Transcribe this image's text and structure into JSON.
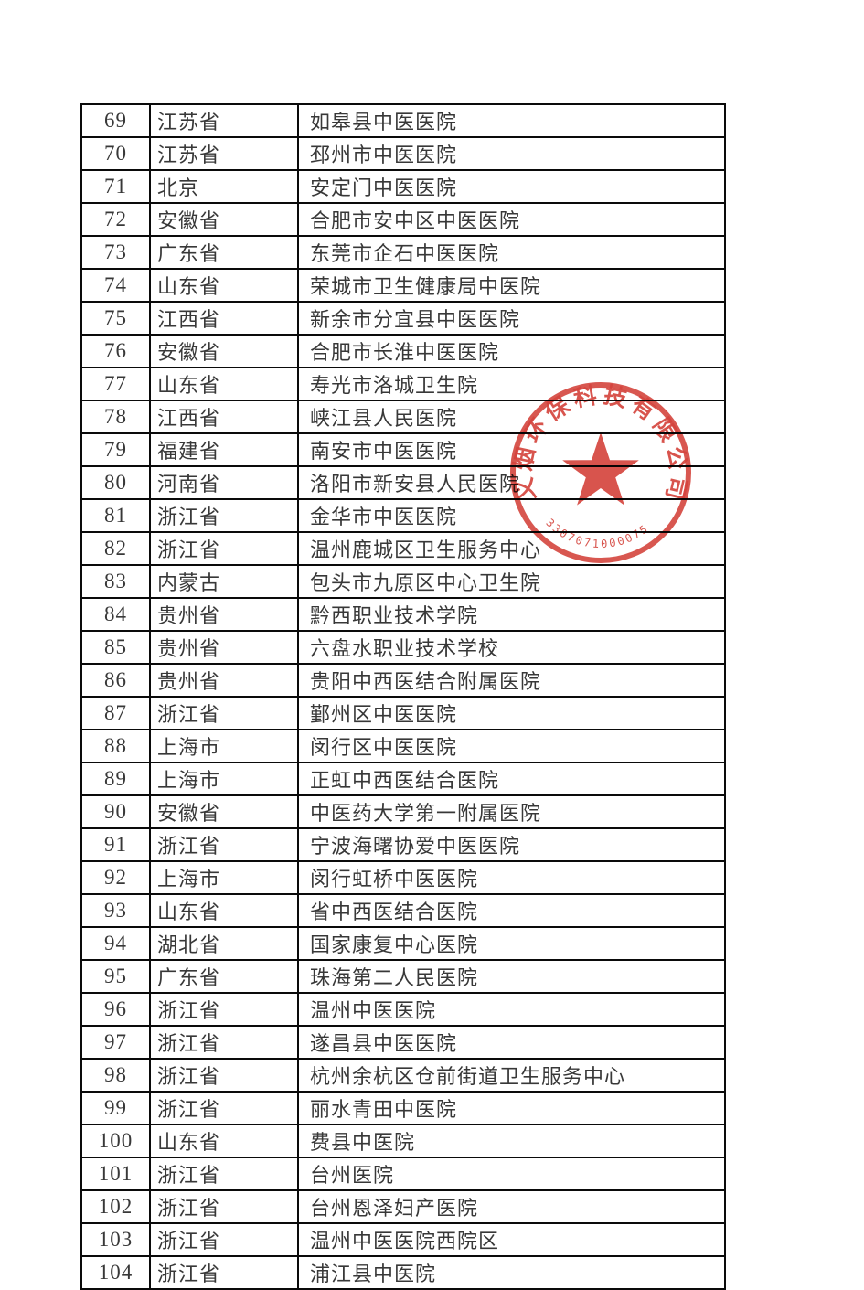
{
  "page": {
    "background_color": "#ffffff",
    "description": "scanned list page, table rows 69-104, no header row"
  },
  "table": {
    "border_color": "#0a0a0a",
    "text_color": "#383838",
    "rows": [
      {
        "no": "69",
        "province": "江苏省",
        "name": "如皋县中医医院"
      },
      {
        "no": "70",
        "province": "江苏省",
        "name": "邳州市中医医院"
      },
      {
        "no": "71",
        "province": "北京",
        "name": "安定门中医医院"
      },
      {
        "no": "72",
        "province": "安徽省",
        "name": "合肥市安中区中医医院"
      },
      {
        "no": "73",
        "province": "广东省",
        "name": "东莞市企石中医医院"
      },
      {
        "no": "74",
        "province": "山东省",
        "name": "荣城市卫生健康局中医院"
      },
      {
        "no": "75",
        "province": "江西省",
        "name": "新余市分宜县中医医院"
      },
      {
        "no": "76",
        "province": "安徽省",
        "name": "合肥市长淮中医医院"
      },
      {
        "no": "77",
        "province": "山东省",
        "name": "寿光市洛城卫生院"
      },
      {
        "no": "78",
        "province": "江西省",
        "name": "峡江县人民医院"
      },
      {
        "no": "79",
        "province": "福建省",
        "name": "南安市中医医院"
      },
      {
        "no": "80",
        "province": "河南省",
        "name": "洛阳市新安县人民医院"
      },
      {
        "no": "81",
        "province": "浙江省",
        "name": "金华市中医医院"
      },
      {
        "no": "82",
        "province": "浙江省",
        "name": "温州鹿城区卫生服务中心"
      },
      {
        "no": "83",
        "province": "内蒙古",
        "name": "包头市九原区中心卫生院"
      },
      {
        "no": "84",
        "province": "贵州省",
        "name": "黔西职业技术学院"
      },
      {
        "no": "85",
        "province": "贵州省",
        "name": "六盘水职业技术学校"
      },
      {
        "no": "86",
        "province": "贵州省",
        "name": "贵阳中西医结合附属医院"
      },
      {
        "no": "87",
        "province": "浙江省",
        "name": "鄞州区中医医院"
      },
      {
        "no": "88",
        "province": "上海市",
        "name": "闵行区中医医院"
      },
      {
        "no": "89",
        "province": "上海市",
        "name": "正虹中西医结合医院"
      },
      {
        "no": "90",
        "province": "安徽省",
        "name": "中医药大学第一附属医院"
      },
      {
        "no": "91",
        "province": "浙江省",
        "name": "宁波海曙协爱中医医院"
      },
      {
        "no": "92",
        "province": "上海市",
        "name": "闵行虹桥中医医院"
      },
      {
        "no": "93",
        "province": "山东省",
        "name": "省中西医结合医院"
      },
      {
        "no": "94",
        "province": "湖北省",
        "name": "国家康复中心医院"
      },
      {
        "no": "95",
        "province": "广东省",
        "name": "珠海第二人民医院"
      },
      {
        "no": "96",
        "province": "浙江省",
        "name": "温州中医医院"
      },
      {
        "no": "97",
        "province": "浙江省",
        "name": "遂昌县中医医院"
      },
      {
        "no": "98",
        "province": "浙江省",
        "name": "杭州余杭区仓前街道卫生服务中心"
      },
      {
        "no": "99",
        "province": "浙江省",
        "name": "丽水青田中医院"
      },
      {
        "no": "100",
        "province": "山东省",
        "name": "费县中医院"
      },
      {
        "no": "101",
        "province": "浙江省",
        "name": "台州医院"
      },
      {
        "no": "102",
        "province": "浙江省",
        "name": "台州恩泽妇产医院"
      },
      {
        "no": "103",
        "province": "浙江省",
        "name": "温州中医医院西院区"
      },
      {
        "no": "104",
        "province": "浙江省",
        "name": "浦江县中医院"
      }
    ]
  },
  "seal": {
    "arc_text": "义烟环保科技有限公司",
    "serial_number": "3307071000075",
    "ink_color": "#d0342c",
    "center_icon": "five-pointed-star"
  }
}
